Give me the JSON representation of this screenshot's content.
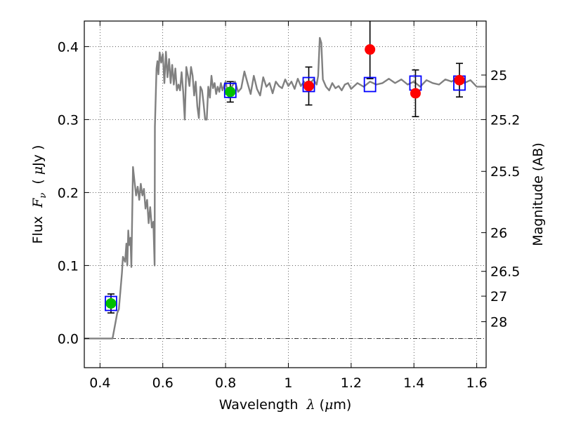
{
  "chart_data": {
    "type": "scatter",
    "xlabel": {
      "prefix": "Wavelength  ",
      "symbol": "λ",
      "unit_open": " (",
      "unit_symbol": "μ",
      "unit_rest": "m)"
    },
    "ylabel": {
      "prefix": "Flux  ",
      "symbol": "F",
      "subscript": "ν",
      "unit_open": "  ( ",
      "unit_symbol": "μ",
      "unit_rest": "Jy )"
    },
    "y2label": "Magnitude (AB)",
    "xlim": [
      0.35,
      1.63
    ],
    "ylim": [
      -0.04,
      0.435
    ],
    "xticks": [
      {
        "v": 0.4,
        "label": "0.4"
      },
      {
        "v": 0.6,
        "label": "0.6"
      },
      {
        "v": 0.8,
        "label": "0.8"
      },
      {
        "v": 1.0,
        "label": "1"
      },
      {
        "v": 1.2,
        "label": "1.2"
      },
      {
        "v": 1.4,
        "label": "1.4"
      },
      {
        "v": 1.6,
        "label": "1.6"
      }
    ],
    "yticks": [
      {
        "v": 0.0,
        "label": "0.0"
      },
      {
        "v": 0.1,
        "label": "0.1"
      },
      {
        "v": 0.2,
        "label": "0.2"
      },
      {
        "v": 0.3,
        "label": "0.3"
      },
      {
        "v": 0.4,
        "label": "0.4"
      }
    ],
    "y2ticks": [
      {
        "flux": 0.361,
        "label": "25"
      },
      {
        "flux": 0.3,
        "label": "25.2"
      },
      {
        "flux": 0.229,
        "label": "25.5"
      },
      {
        "flux": 0.145,
        "label": "26"
      },
      {
        "flux": 0.092,
        "label": "26.5"
      },
      {
        "flux": 0.058,
        "label": "27"
      },
      {
        "flux": 0.023,
        "label": "28"
      }
    ],
    "grid": true,
    "zero_line": true,
    "series": [
      {
        "kind": "template_spectrum",
        "color": "#808080",
        "x": [
          0.35,
          0.43,
          0.44,
          0.455,
          0.46,
          0.47,
          0.473,
          0.48,
          0.484,
          0.487,
          0.49,
          0.493,
          0.497,
          0.5,
          0.505,
          0.51,
          0.515,
          0.52,
          0.525,
          0.53,
          0.535,
          0.54,
          0.545,
          0.55,
          0.555,
          0.56,
          0.565,
          0.57,
          0.574,
          0.575,
          0.58,
          0.583,
          0.586,
          0.59,
          0.595,
          0.6,
          0.605,
          0.61,
          0.615,
          0.62,
          0.625,
          0.63,
          0.635,
          0.64,
          0.645,
          0.65,
          0.655,
          0.66,
          0.665,
          0.67,
          0.675,
          0.68,
          0.685,
          0.69,
          0.695,
          0.7,
          0.705,
          0.71,
          0.715,
          0.72,
          0.725,
          0.73,
          0.735,
          0.74,
          0.745,
          0.75,
          0.755,
          0.76,
          0.765,
          0.77,
          0.775,
          0.78,
          0.785,
          0.79,
          0.8,
          0.81,
          0.82,
          0.83,
          0.84,
          0.85,
          0.86,
          0.87,
          0.88,
          0.89,
          0.9,
          0.91,
          0.92,
          0.93,
          0.94,
          0.95,
          0.96,
          0.97,
          0.98,
          0.99,
          1.0,
          1.01,
          1.02,
          1.03,
          1.04,
          1.05,
          1.06,
          1.07,
          1.08,
          1.09,
          1.095,
          1.1,
          1.105,
          1.11,
          1.12,
          1.13,
          1.14,
          1.15,
          1.16,
          1.17,
          1.18,
          1.19,
          1.2,
          1.22,
          1.24,
          1.26,
          1.28,
          1.3,
          1.32,
          1.34,
          1.36,
          1.38,
          1.4,
          1.42,
          1.44,
          1.46,
          1.48,
          1.5,
          1.52,
          1.54,
          1.56,
          1.58,
          1.6,
          1.63
        ],
        "y": [
          0.0,
          0.0,
          0.0,
          0.035,
          0.04,
          0.09,
          0.112,
          0.105,
          0.13,
          0.1,
          0.148,
          0.128,
          0.138,
          0.098,
          0.235,
          0.215,
          0.196,
          0.208,
          0.19,
          0.212,
          0.196,
          0.205,
          0.178,
          0.19,
          0.158,
          0.18,
          0.152,
          0.16,
          0.1,
          0.29,
          0.37,
          0.38,
          0.362,
          0.392,
          0.378,
          0.39,
          0.35,
          0.393,
          0.358,
          0.383,
          0.35,
          0.375,
          0.348,
          0.37,
          0.34,
          0.348,
          0.34,
          0.365,
          0.338,
          0.3,
          0.372,
          0.36,
          0.346,
          0.372,
          0.36,
          0.333,
          0.352,
          0.318,
          0.302,
          0.345,
          0.34,
          0.322,
          0.3,
          0.3,
          0.345,
          0.33,
          0.36,
          0.343,
          0.35,
          0.335,
          0.345,
          0.338,
          0.35,
          0.34,
          0.352,
          0.33,
          0.345,
          0.352,
          0.338,
          0.343,
          0.366,
          0.35,
          0.335,
          0.36,
          0.342,
          0.333,
          0.358,
          0.345,
          0.35,
          0.336,
          0.352,
          0.346,
          0.343,
          0.355,
          0.346,
          0.352,
          0.342,
          0.356,
          0.346,
          0.352,
          0.344,
          0.35,
          0.355,
          0.348,
          0.36,
          0.412,
          0.405,
          0.355,
          0.345,
          0.34,
          0.35,
          0.343,
          0.346,
          0.34,
          0.348,
          0.35,
          0.342,
          0.35,
          0.345,
          0.352,
          0.348,
          0.35,
          0.356,
          0.35,
          0.355,
          0.348,
          0.352,
          0.345,
          0.354,
          0.35,
          0.348,
          0.355,
          0.352,
          0.357,
          0.35,
          0.354,
          0.345,
          0.345
        ]
      },
      {
        "kind": "model_photometry",
        "marker": "open-square",
        "color": "#0000ff",
        "points": [
          {
            "x": 0.435,
            "y": 0.048
          },
          {
            "x": 0.815,
            "y": 0.34
          },
          {
            "x": 1.065,
            "y": 0.348
          },
          {
            "x": 1.26,
            "y": 0.348
          },
          {
            "x": 1.405,
            "y": 0.35
          },
          {
            "x": 1.545,
            "y": 0.35
          }
        ]
      },
      {
        "kind": "observed_photometry",
        "marker": "filled-circle",
        "points": [
          {
            "x": 0.435,
            "y": 0.048,
            "err_low": 0.013,
            "err_high": 0.013,
            "color": "#00bf00"
          },
          {
            "x": 0.815,
            "y": 0.338,
            "err_low": 0.014,
            "err_high": 0.014,
            "color": "#00bf00"
          },
          {
            "x": 1.065,
            "y": 0.346,
            "err_low": 0.026,
            "err_high": 0.026,
            "color": "#ff0000"
          },
          {
            "x": 1.26,
            "y": 0.396,
            "err_low": 0.04,
            "err_high": 0.04,
            "color": "#ff0000"
          },
          {
            "x": 1.405,
            "y": 0.336,
            "err_low": 0.032,
            "err_high": 0.032,
            "color": "#ff0000"
          },
          {
            "x": 1.545,
            "y": 0.354,
            "err_low": 0.023,
            "err_high": 0.023,
            "color": "#ff0000"
          }
        ]
      }
    ]
  }
}
